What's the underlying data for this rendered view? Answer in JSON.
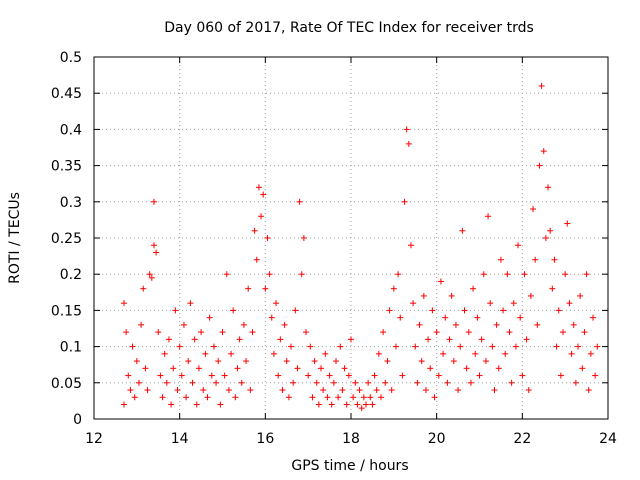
{
  "chart_data": {
    "type": "scatter",
    "title": "Day 060 of 2017, Rate Of TEC Index for receiver trds",
    "xlabel": "GPS time / hours",
    "ylabel": "ROTI / TECUs",
    "xlim": [
      12,
      24
    ],
    "ylim": [
      0,
      0.5
    ],
    "xticks": [
      12,
      14,
      16,
      18,
      20,
      22,
      24
    ],
    "yticks": [
      0,
      0.05,
      0.1,
      0.15,
      0.2,
      0.25,
      0.3,
      0.35,
      0.4,
      0.45,
      0.5
    ],
    "xtick_labels": [
      "12",
      "14",
      "16",
      "18",
      "20",
      "22",
      "24"
    ],
    "ytick_labels": [
      "0",
      "0.05",
      "0.1",
      "0.15",
      "0.2",
      "0.25",
      "0.3",
      "0.35",
      "0.4",
      "0.45",
      "0.5"
    ],
    "grid": true,
    "marker": "plus",
    "color": "#ff0000",
    "series": [
      {
        "points": [
          [
            12.7,
            0.02
          ],
          [
            12.7,
            0.16
          ],
          [
            12.75,
            0.12
          ],
          [
            12.8,
            0.06
          ],
          [
            12.85,
            0.04
          ],
          [
            12.9,
            0.1
          ],
          [
            12.95,
            0.03
          ],
          [
            13.0,
            0.08
          ],
          [
            13.05,
            0.05
          ],
          [
            13.1,
            0.13
          ],
          [
            13.15,
            0.18
          ],
          [
            13.2,
            0.07
          ],
          [
            13.25,
            0.04
          ],
          [
            13.3,
            0.2
          ],
          [
            13.35,
            0.195
          ],
          [
            13.4,
            0.3
          ],
          [
            13.4,
            0.24
          ],
          [
            13.45,
            0.23
          ],
          [
            13.5,
            0.12
          ],
          [
            13.55,
            0.06
          ],
          [
            13.6,
            0.03
          ],
          [
            13.65,
            0.09
          ],
          [
            13.7,
            0.05
          ],
          [
            13.75,
            0.11
          ],
          [
            13.8,
            0.02
          ],
          [
            13.85,
            0.07
          ],
          [
            13.9,
            0.15
          ],
          [
            13.95,
            0.04
          ],
          [
            14.0,
            0.1
          ],
          [
            14.05,
            0.06
          ],
          [
            14.1,
            0.13
          ],
          [
            14.15,
            0.03
          ],
          [
            14.2,
            0.08
          ],
          [
            14.25,
            0.16
          ],
          [
            14.3,
            0.05
          ],
          [
            14.35,
            0.11
          ],
          [
            14.4,
            0.02
          ],
          [
            14.45,
            0.07
          ],
          [
            14.5,
            0.12
          ],
          [
            14.55,
            0.04
          ],
          [
            14.6,
            0.09
          ],
          [
            14.65,
            0.03
          ],
          [
            14.7,
            0.14
          ],
          [
            14.75,
            0.06
          ],
          [
            14.8,
            0.1
          ],
          [
            14.85,
            0.05
          ],
          [
            14.9,
            0.08
          ],
          [
            14.95,
            0.02
          ],
          [
            15.0,
            0.12
          ],
          [
            15.05,
            0.06
          ],
          [
            15.1,
            0.2
          ],
          [
            15.15,
            0.04
          ],
          [
            15.2,
            0.09
          ],
          [
            15.25,
            0.15
          ],
          [
            15.3,
            0.03
          ],
          [
            15.35,
            0.07
          ],
          [
            15.4,
            0.11
          ],
          [
            15.45,
            0.05
          ],
          [
            15.5,
            0.13
          ],
          [
            15.55,
            0.08
          ],
          [
            15.6,
            0.18
          ],
          [
            15.65,
            0.04
          ],
          [
            15.7,
            0.12
          ],
          [
            15.75,
            0.26
          ],
          [
            15.8,
            0.22
          ],
          [
            15.85,
            0.32
          ],
          [
            15.9,
            0.28
          ],
          [
            15.95,
            0.31
          ],
          [
            16.0,
            0.18
          ],
          [
            16.05,
            0.25
          ],
          [
            16.1,
            0.2
          ],
          [
            16.15,
            0.14
          ],
          [
            16.2,
            0.09
          ],
          [
            16.25,
            0.16
          ],
          [
            16.3,
            0.06
          ],
          [
            16.35,
            0.11
          ],
          [
            16.4,
            0.04
          ],
          [
            16.45,
            0.13
          ],
          [
            16.5,
            0.08
          ],
          [
            16.55,
            0.03
          ],
          [
            16.6,
            0.1
          ],
          [
            16.65,
            0.05
          ],
          [
            16.7,
            0.15
          ],
          [
            16.75,
            0.07
          ],
          [
            16.8,
            0.3
          ],
          [
            16.85,
            0.2
          ],
          [
            16.9,
            0.25
          ],
          [
            16.95,
            0.12
          ],
          [
            17.0,
            0.06
          ],
          [
            17.05,
            0.1
          ],
          [
            17.1,
            0.03
          ],
          [
            17.15,
            0.08
          ],
          [
            17.2,
            0.05
          ],
          [
            17.25,
            0.02
          ],
          [
            17.3,
            0.07
          ],
          [
            17.35,
            0.04
          ],
          [
            17.4,
            0.09
          ],
          [
            17.45,
            0.03
          ],
          [
            17.5,
            0.06
          ],
          [
            17.55,
            0.02
          ],
          [
            17.6,
            0.05
          ],
          [
            17.65,
            0.08
          ],
          [
            17.7,
            0.03
          ],
          [
            17.75,
            0.1
          ],
          [
            17.8,
            0.04
          ],
          [
            17.85,
            0.07
          ],
          [
            17.9,
            0.02
          ],
          [
            17.95,
            0.06
          ],
          [
            18.0,
            0.11
          ],
          [
            18.05,
            0.03
          ],
          [
            18.1,
            0.05
          ],
          [
            18.15,
            0.02
          ],
          [
            18.2,
            0.04
          ],
          [
            18.25,
            0.015
          ],
          [
            18.3,
            0.03
          ],
          [
            18.35,
            0.02
          ],
          [
            18.4,
            0.05
          ],
          [
            18.45,
            0.03
          ],
          [
            18.5,
            0.02
          ],
          [
            18.55,
            0.06
          ],
          [
            18.6,
            0.04
          ],
          [
            18.65,
            0.09
          ],
          [
            18.7,
            0.03
          ],
          [
            18.75,
            0.12
          ],
          [
            18.8,
            0.05
          ],
          [
            18.85,
            0.08
          ],
          [
            18.9,
            0.15
          ],
          [
            18.95,
            0.04
          ],
          [
            19.0,
            0.18
          ],
          [
            19.05,
            0.1
          ],
          [
            19.1,
            0.2
          ],
          [
            19.15,
            0.14
          ],
          [
            19.2,
            0.06
          ],
          [
            19.25,
            0.3
          ],
          [
            19.3,
            0.4
          ],
          [
            19.35,
            0.38
          ],
          [
            19.4,
            0.24
          ],
          [
            19.45,
            0.16
          ],
          [
            19.5,
            0.1
          ],
          [
            19.55,
            0.05
          ],
          [
            19.6,
            0.13
          ],
          [
            19.65,
            0.08
          ],
          [
            19.7,
            0.17
          ],
          [
            19.75,
            0.04
          ],
          [
            19.8,
            0.11
          ],
          [
            19.85,
            0.07
          ],
          [
            19.9,
            0.15
          ],
          [
            19.95,
            0.03
          ],
          [
            20.0,
            0.12
          ],
          [
            20.05,
            0.06
          ],
          [
            20.1,
            0.19
          ],
          [
            20.15,
            0.09
          ],
          [
            20.2,
            0.14
          ],
          [
            20.25,
            0.05
          ],
          [
            20.3,
            0.11
          ],
          [
            20.35,
            0.17
          ],
          [
            20.4,
            0.08
          ],
          [
            20.45,
            0.13
          ],
          [
            20.5,
            0.04
          ],
          [
            20.55,
            0.1
          ],
          [
            20.6,
            0.26
          ],
          [
            20.65,
            0.15
          ],
          [
            20.7,
            0.07
          ],
          [
            20.75,
            0.12
          ],
          [
            20.8,
            0.05
          ],
          [
            20.85,
            0.18
          ],
          [
            20.9,
            0.09
          ],
          [
            20.95,
            0.14
          ],
          [
            21.0,
            0.06
          ],
          [
            21.05,
            0.11
          ],
          [
            21.1,
            0.2
          ],
          [
            21.15,
            0.08
          ],
          [
            21.2,
            0.28
          ],
          [
            21.25,
            0.16
          ],
          [
            21.3,
            0.1
          ],
          [
            21.35,
            0.04
          ],
          [
            21.4,
            0.13
          ],
          [
            21.45,
            0.07
          ],
          [
            21.5,
            0.22
          ],
          [
            21.55,
            0.15
          ],
          [
            21.6,
            0.09
          ],
          [
            21.65,
            0.2
          ],
          [
            21.7,
            0.12
          ],
          [
            21.75,
            0.05
          ],
          [
            21.8,
            0.16
          ],
          [
            21.85,
            0.1
          ],
          [
            21.9,
            0.24
          ],
          [
            21.95,
            0.14
          ],
          [
            22.0,
            0.06
          ],
          [
            22.05,
            0.2
          ],
          [
            22.1,
            0.11
          ],
          [
            22.15,
            0.04
          ],
          [
            22.2,
            0.17
          ],
          [
            22.25,
            0.29
          ],
          [
            22.3,
            0.22
          ],
          [
            22.35,
            0.13
          ],
          [
            22.4,
            0.35
          ],
          [
            22.45,
            0.46
          ],
          [
            22.5,
            0.37
          ],
          [
            22.55,
            0.25
          ],
          [
            22.6,
            0.32
          ],
          [
            22.65,
            0.26
          ],
          [
            22.7,
            0.18
          ],
          [
            22.75,
            0.22
          ],
          [
            22.8,
            0.1
          ],
          [
            22.85,
            0.15
          ],
          [
            22.9,
            0.06
          ],
          [
            22.95,
            0.12
          ],
          [
            23.0,
            0.2
          ],
          [
            23.05,
            0.27
          ],
          [
            23.1,
            0.16
          ],
          [
            23.15,
            0.09
          ],
          [
            23.2,
            0.13
          ],
          [
            23.25,
            0.05
          ],
          [
            23.3,
            0.1
          ],
          [
            23.35,
            0.17
          ],
          [
            23.4,
            0.07
          ],
          [
            23.45,
            0.12
          ],
          [
            23.5,
            0.2
          ],
          [
            23.55,
            0.04
          ],
          [
            23.6,
            0.09
          ],
          [
            23.65,
            0.14
          ],
          [
            23.7,
            0.06
          ],
          [
            23.75,
            0.1
          ]
        ]
      }
    ]
  }
}
